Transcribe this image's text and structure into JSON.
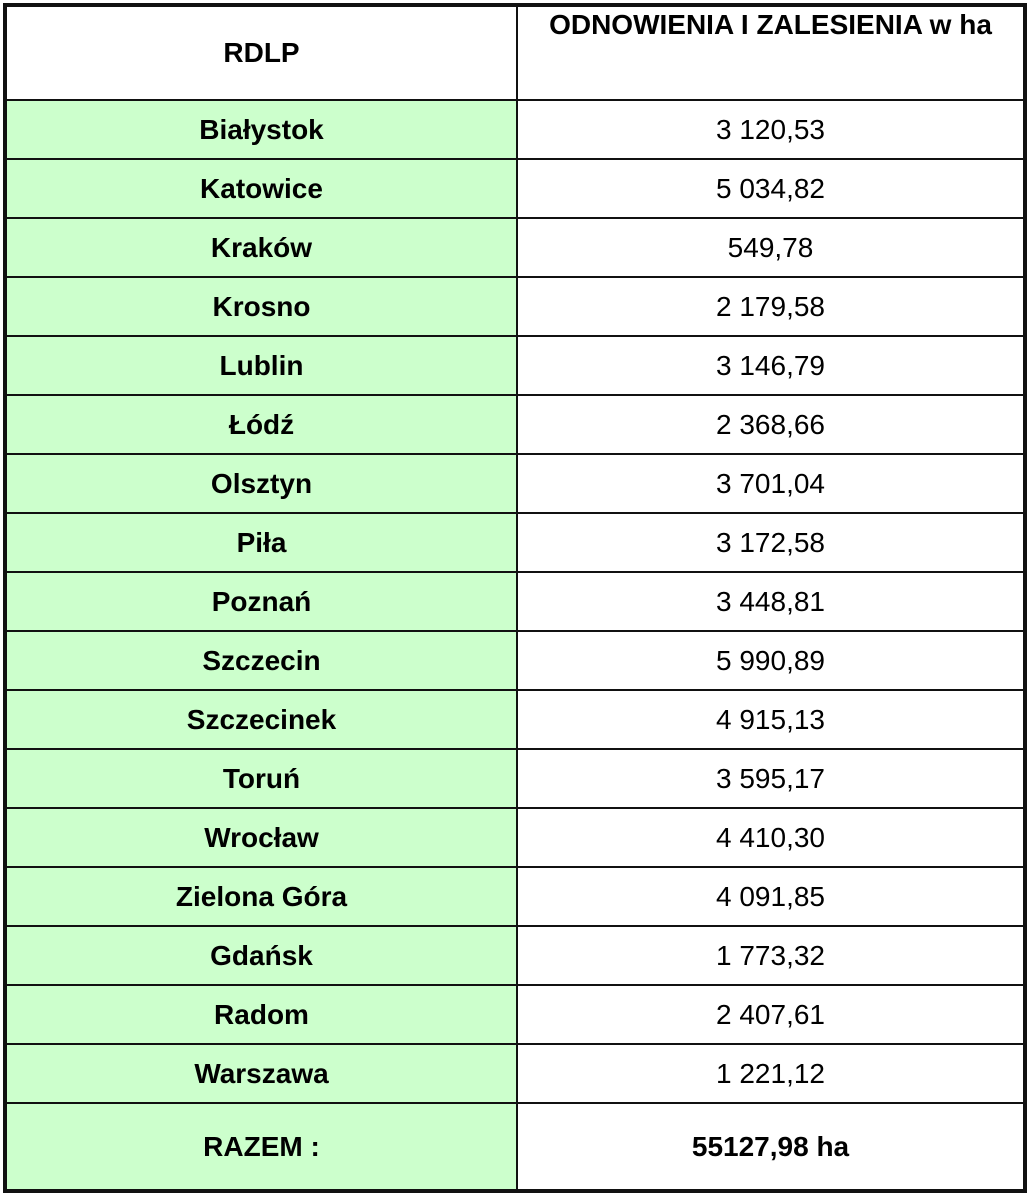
{
  "header": {
    "col1": "RDLP",
    "col2": "ODNOWIENIA I ZALESIENIA w ha"
  },
  "rows": [
    {
      "name": "Białystok",
      "value": "3 120,53"
    },
    {
      "name": "Katowice",
      "value": "5 034,82"
    },
    {
      "name": "Kraków",
      "value": "549,78"
    },
    {
      "name": "Krosno",
      "value": "2 179,58"
    },
    {
      "name": "Lublin",
      "value": "3 146,79"
    },
    {
      "name": "Łódź",
      "value": "2 368,66"
    },
    {
      "name": "Olsztyn",
      "value": "3 701,04"
    },
    {
      "name": "Piła",
      "value": "3 172,58"
    },
    {
      "name": "Poznań",
      "value": "3 448,81"
    },
    {
      "name": "Szczecin",
      "value": "5 990,89"
    },
    {
      "name": "Szczecinek",
      "value": "4 915,13"
    },
    {
      "name": "Toruń",
      "value": "3 595,17"
    },
    {
      "name": "Wrocław",
      "value": "4 410,30"
    },
    {
      "name": "Zielona Góra",
      "value": "4 091,85"
    },
    {
      "name": "Gdańsk",
      "value": "1 773,32"
    },
    {
      "name": "Radom",
      "value": "2 407,61"
    },
    {
      "name": "Warszawa",
      "value": "1 221,12"
    }
  ],
  "total": {
    "label": "RAZEM :",
    "value": "55127,98 ha"
  },
  "colors": {
    "name_cell_bg": "#ccffcc",
    "border": "#111111"
  }
}
